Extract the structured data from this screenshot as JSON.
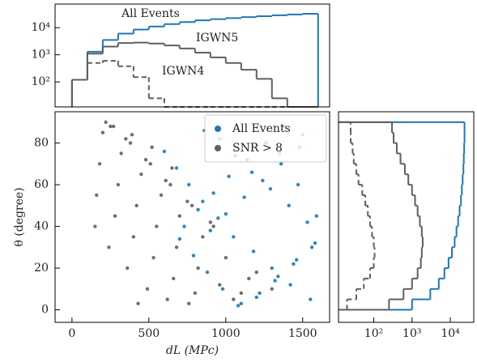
{
  "chart_data": [
    {
      "type": "step-histogram",
      "bins": [
        0,
        100,
        200,
        300,
        400,
        500,
        600,
        700,
        800,
        900,
        1000,
        1100,
        1200,
        1300,
        1400,
        1500,
        1600
      ],
      "series": [
        {
          "name": "All Events",
          "color": "#1f77b4",
          "dash": false,
          "values": [
            120,
            1300,
            3500,
            6000,
            8500,
            11000,
            13500,
            16000,
            18500,
            20500,
            22500,
            24500,
            26500,
            28500,
            30500,
            32500
          ]
        },
        {
          "name": "IGWN5",
          "color": "#5f5f5f",
          "dash": false,
          "values": [
            120,
            1100,
            2000,
            2700,
            2800,
            2600,
            2200,
            1700,
            1200,
            800,
            500,
            280,
            130,
            25,
            0,
            0
          ]
        },
        {
          "name": "IGWN4",
          "color": "#5f5f5f",
          "dash": true,
          "values": [
            120,
            500,
            600,
            380,
            150,
            25,
            0,
            0,
            0,
            0,
            0,
            0,
            0,
            0,
            0,
            0
          ]
        }
      ],
      "xlim": [
        -110,
        1675
      ],
      "ylim": [
        12,
        74000
      ],
      "ylog": true,
      "yticks": [
        {
          "value": 100,
          "label": "10²"
        },
        {
          "value": 1000,
          "label": "10³"
        },
        {
          "value": 10000,
          "label": "10⁴"
        }
      ]
    },
    {
      "type": "scatter",
      "x_label": "dL (MPc)",
      "y_label": "θ (degree)",
      "legend": "upper right",
      "series": [
        {
          "name": "All Events",
          "color": "#1f77b4",
          "x": [
            1550,
            1420,
            1300,
            1180,
            1050,
            950,
            850,
            760,
            680,
            600,
            1500,
            1380,
            1260,
            1140,
            1020,
            920,
            820,
            730,
            1580,
            1460,
            1340,
            1220,
            1100,
            980,
            880,
            790,
            700,
            1530,
            1410,
            1290,
            1170,
            1060,
            960,
            860,
            1480,
            1360,
            1240,
            1120,
            1000,
            900,
            1560,
            1440,
            1320,
            1200,
            1080,
            1590,
            1470,
            1350
          ],
          "values": [
            5,
            12,
            20,
            28,
            35,
            44,
            52,
            60,
            68,
            76,
            84,
            88,
            80,
            72,
            64,
            56,
            48,
            40,
            32,
            24,
            16,
            8,
            3,
            10,
            18,
            26,
            34,
            42,
            50,
            58,
            66,
            74,
            82,
            86,
            78,
            70,
            62,
            54,
            46,
            38,
            30,
            22,
            14,
            6,
            2,
            45,
            60,
            75
          ]
        },
        {
          "name": "SNR > 8",
          "color": "#5f5f5f",
          "x": [
            200,
            320,
            450,
            580,
            700,
            850,
            1000,
            1150,
            250,
            380,
            510,
            640,
            780,
            920,
            1300,
            180,
            300,
            420,
            550,
            680,
            820,
            960,
            1100,
            220,
            350,
            480,
            610,
            750,
            900,
            160,
            280,
            400,
            530,
            660,
            800,
            1050,
            240,
            360,
            490,
            620,
            760,
            150,
            270,
            390,
            520,
            650,
            1200,
            430
          ],
          "values": [
            85,
            75,
            65,
            55,
            45,
            35,
            25,
            15,
            88,
            80,
            70,
            60,
            50,
            40,
            10,
            70,
            60,
            50,
            40,
            30,
            20,
            12,
            8,
            90,
            82,
            72,
            62,
            52,
            42,
            55,
            45,
            35,
            25,
            15,
            8,
            5,
            30,
            20,
            10,
            5,
            3,
            40,
            88,
            84,
            78,
            68,
            18,
            3
          ]
        }
      ],
      "xlim": [
        -110,
        1675
      ],
      "xticks": [
        0,
        500,
        1000,
        1500
      ],
      "ylim": [
        -6,
        95
      ],
      "yticks": [
        0,
        20,
        40,
        60,
        80
      ]
    },
    {
      "type": "horizontal-step-histogram",
      "bins": [
        0,
        5,
        10,
        15,
        20,
        25,
        30,
        35,
        40,
        45,
        50,
        55,
        60,
        65,
        70,
        75,
        80,
        85,
        90
      ],
      "series": [
        {
          "color": "#1f77b4",
          "dash": false,
          "values": [
            1000,
            3000,
            5000,
            7000,
            9000,
            11000,
            13000,
            14500,
            16000,
            17500,
            19000,
            20000,
            21000,
            22000,
            22500,
            23000,
            23500,
            23500
          ]
        },
        {
          "color": "#5f5f5f",
          "dash": false,
          "values": [
            250,
            600,
            1000,
            1400,
            1700,
            1800,
            1900,
            1800,
            1600,
            1400,
            1200,
            1000,
            800,
            650,
            500,
            400,
            330,
            300
          ]
        },
        {
          "color": "#5f5f5f",
          "dash": true,
          "values": [
            20,
            35,
            55,
            80,
            100,
            105,
            100,
            90,
            80,
            70,
            60,
            50,
            40,
            35,
            30,
            28,
            25,
            25
          ]
        }
      ],
      "xlim": [
        12,
        41000
      ],
      "xlog": true,
      "ylim": [
        -6,
        95
      ],
      "xticks": [
        {
          "value": 100,
          "label": "10²"
        },
        {
          "value": 1000,
          "label": "10³"
        },
        {
          "value": 10000,
          "label": "10⁴"
        }
      ]
    }
  ]
}
